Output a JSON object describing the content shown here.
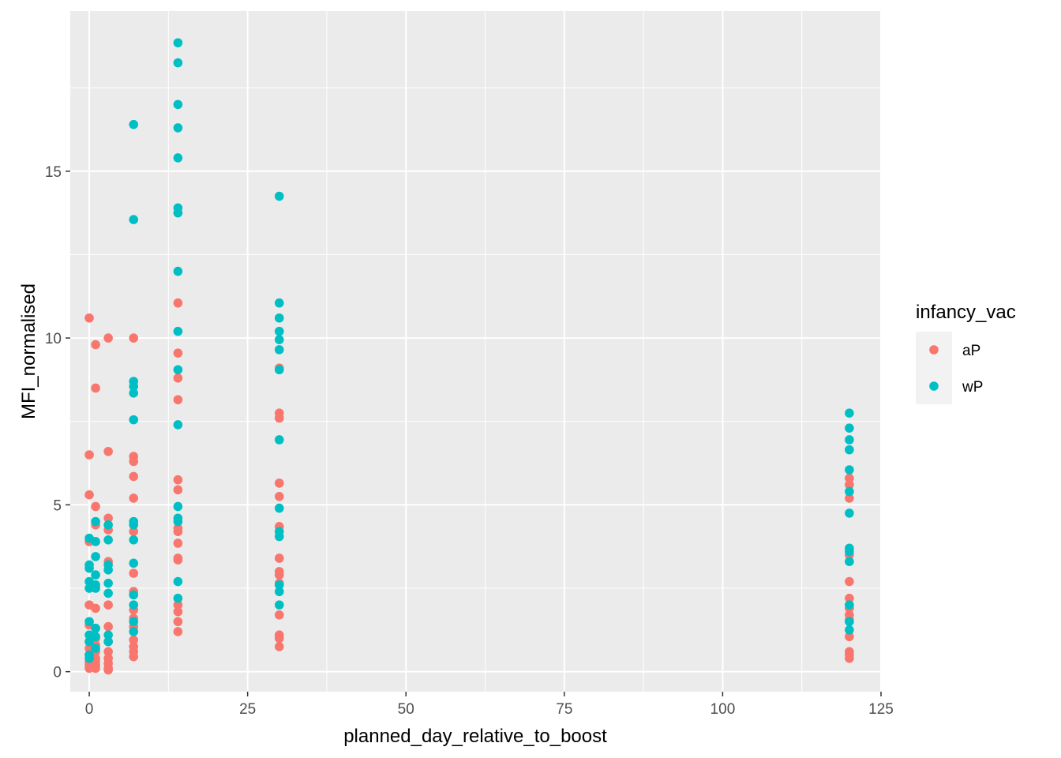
{
  "chart_data": {
    "type": "scatter",
    "title": "",
    "xlabel": "planned_day_relative_to_boost",
    "ylabel": "MFI_normalised",
    "xlim": [
      -3.0,
      125.0
    ],
    "ylim": [
      -0.6,
      19.8
    ],
    "x_ticks": [
      0,
      25,
      50,
      75,
      100,
      125
    ],
    "y_ticks": [
      0,
      5,
      10,
      15
    ],
    "grid": true,
    "legend": {
      "title": "infancy_vac",
      "placement": "right",
      "entries": [
        {
          "label": "aP",
          "color": "#F8766D"
        },
        {
          "label": "wP",
          "color": "#00BFC4"
        }
      ]
    },
    "series": [
      {
        "name": "aP",
        "color": "#F8766D",
        "points": [
          [
            0,
            10.6
          ],
          [
            0,
            6.5
          ],
          [
            0,
            5.3
          ],
          [
            0,
            3.9
          ],
          [
            0,
            2.0
          ],
          [
            0,
            1.4
          ],
          [
            0,
            0.9
          ],
          [
            0,
            0.7
          ],
          [
            0,
            0.5
          ],
          [
            0,
            0.3
          ],
          [
            0,
            0.2
          ],
          [
            0,
            0.1
          ],
          [
            1,
            9.8
          ],
          [
            1,
            8.5
          ],
          [
            1,
            4.95
          ],
          [
            1,
            4.4
          ],
          [
            1,
            1.9
          ],
          [
            1,
            1.3
          ],
          [
            1,
            1.0
          ],
          [
            1,
            0.8
          ],
          [
            1,
            0.6
          ],
          [
            1,
            0.4
          ],
          [
            1,
            0.3
          ],
          [
            1,
            0.2
          ],
          [
            1,
            0.1
          ],
          [
            3,
            10.0
          ],
          [
            3,
            6.6
          ],
          [
            3,
            4.6
          ],
          [
            3,
            4.25
          ],
          [
            3,
            3.3
          ],
          [
            3,
            2.0
          ],
          [
            3,
            1.35
          ],
          [
            3,
            0.9
          ],
          [
            3,
            0.6
          ],
          [
            3,
            0.4
          ],
          [
            3,
            0.25
          ],
          [
            3,
            0.1
          ],
          [
            3,
            0.05
          ],
          [
            7,
            10.0
          ],
          [
            7,
            6.45
          ],
          [
            7,
            6.3
          ],
          [
            7,
            5.85
          ],
          [
            7,
            5.2
          ],
          [
            7,
            4.2
          ],
          [
            7,
            2.95
          ],
          [
            7,
            2.4
          ],
          [
            7,
            1.85
          ],
          [
            7,
            1.6
          ],
          [
            7,
            1.35
          ],
          [
            7,
            0.95
          ],
          [
            7,
            0.75
          ],
          [
            7,
            0.6
          ],
          [
            7,
            0.45
          ],
          [
            14,
            11.05
          ],
          [
            14,
            9.55
          ],
          [
            14,
            8.8
          ],
          [
            14,
            8.15
          ],
          [
            14,
            5.75
          ],
          [
            14,
            5.45
          ],
          [
            14,
            4.3
          ],
          [
            14,
            4.2
          ],
          [
            14,
            3.85
          ],
          [
            14,
            3.4
          ],
          [
            14,
            3.35
          ],
          [
            14,
            2.0
          ],
          [
            14,
            1.8
          ],
          [
            14,
            1.5
          ],
          [
            14,
            1.2
          ],
          [
            30,
            9.1
          ],
          [
            30,
            7.75
          ],
          [
            30,
            7.6
          ],
          [
            30,
            5.65
          ],
          [
            30,
            5.25
          ],
          [
            30,
            4.35
          ],
          [
            30,
            3.4
          ],
          [
            30,
            3.0
          ],
          [
            30,
            2.9
          ],
          [
            30,
            2.65
          ],
          [
            30,
            1.7
          ],
          [
            30,
            1.1
          ],
          [
            30,
            1.0
          ],
          [
            30,
            0.75
          ],
          [
            120,
            5.8
          ],
          [
            120,
            5.6
          ],
          [
            120,
            5.2
          ],
          [
            120,
            3.5
          ],
          [
            120,
            2.7
          ],
          [
            120,
            2.2
          ],
          [
            120,
            1.9
          ],
          [
            120,
            1.7
          ],
          [
            120,
            1.55
          ],
          [
            120,
            1.05
          ],
          [
            120,
            0.6
          ],
          [
            120,
            0.5
          ],
          [
            120,
            0.4
          ]
        ]
      },
      {
        "name": "wP",
        "color": "#00BFC4",
        "points": [
          [
            0,
            4.0
          ],
          [
            0,
            3.2
          ],
          [
            0,
            3.1
          ],
          [
            0,
            2.7
          ],
          [
            0,
            2.5
          ],
          [
            0,
            1.5
          ],
          [
            0,
            1.1
          ],
          [
            0,
            0.9
          ],
          [
            0,
            0.5
          ],
          [
            0,
            0.4
          ],
          [
            1,
            4.5
          ],
          [
            1,
            3.9
          ],
          [
            1,
            3.45
          ],
          [
            1,
            2.9
          ],
          [
            1,
            2.6
          ],
          [
            1,
            2.5
          ],
          [
            1,
            1.3
          ],
          [
            1,
            1.05
          ],
          [
            1,
            0.7
          ],
          [
            3,
            4.4
          ],
          [
            3,
            3.95
          ],
          [
            3,
            3.2
          ],
          [
            3,
            3.05
          ],
          [
            3,
            2.65
          ],
          [
            3,
            2.35
          ],
          [
            3,
            1.1
          ],
          [
            3,
            0.9
          ],
          [
            7,
            16.4
          ],
          [
            7,
            13.55
          ],
          [
            7,
            8.7
          ],
          [
            7,
            8.55
          ],
          [
            7,
            8.35
          ],
          [
            7,
            7.55
          ],
          [
            7,
            4.5
          ],
          [
            7,
            4.4
          ],
          [
            7,
            3.95
          ],
          [
            7,
            3.25
          ],
          [
            7,
            2.3
          ],
          [
            7,
            2.0
          ],
          [
            7,
            1.5
          ],
          [
            7,
            1.2
          ],
          [
            14,
            18.85
          ],
          [
            14,
            18.25
          ],
          [
            14,
            17.0
          ],
          [
            14,
            16.3
          ],
          [
            14,
            15.4
          ],
          [
            14,
            13.9
          ],
          [
            14,
            13.75
          ],
          [
            14,
            12.0
          ],
          [
            14,
            10.2
          ],
          [
            14,
            9.05
          ],
          [
            14,
            7.4
          ],
          [
            14,
            4.95
          ],
          [
            14,
            4.6
          ],
          [
            14,
            4.5
          ],
          [
            14,
            2.7
          ],
          [
            14,
            2.2
          ],
          [
            30,
            14.25
          ],
          [
            30,
            11.05
          ],
          [
            30,
            10.6
          ],
          [
            30,
            10.2
          ],
          [
            30,
            9.95
          ],
          [
            30,
            9.65
          ],
          [
            30,
            9.05
          ],
          [
            30,
            6.95
          ],
          [
            30,
            4.9
          ],
          [
            30,
            4.2
          ],
          [
            30,
            4.05
          ],
          [
            30,
            2.6
          ],
          [
            30,
            2.4
          ],
          [
            30,
            2.0
          ],
          [
            120,
            7.75
          ],
          [
            120,
            7.3
          ],
          [
            120,
            6.95
          ],
          [
            120,
            6.65
          ],
          [
            120,
            6.05
          ],
          [
            120,
            5.4
          ],
          [
            120,
            4.75
          ],
          [
            120,
            3.7
          ],
          [
            120,
            3.6
          ],
          [
            120,
            3.3
          ],
          [
            120,
            2.0
          ],
          [
            120,
            1.5
          ],
          [
            120,
            1.25
          ]
        ]
      }
    ]
  }
}
